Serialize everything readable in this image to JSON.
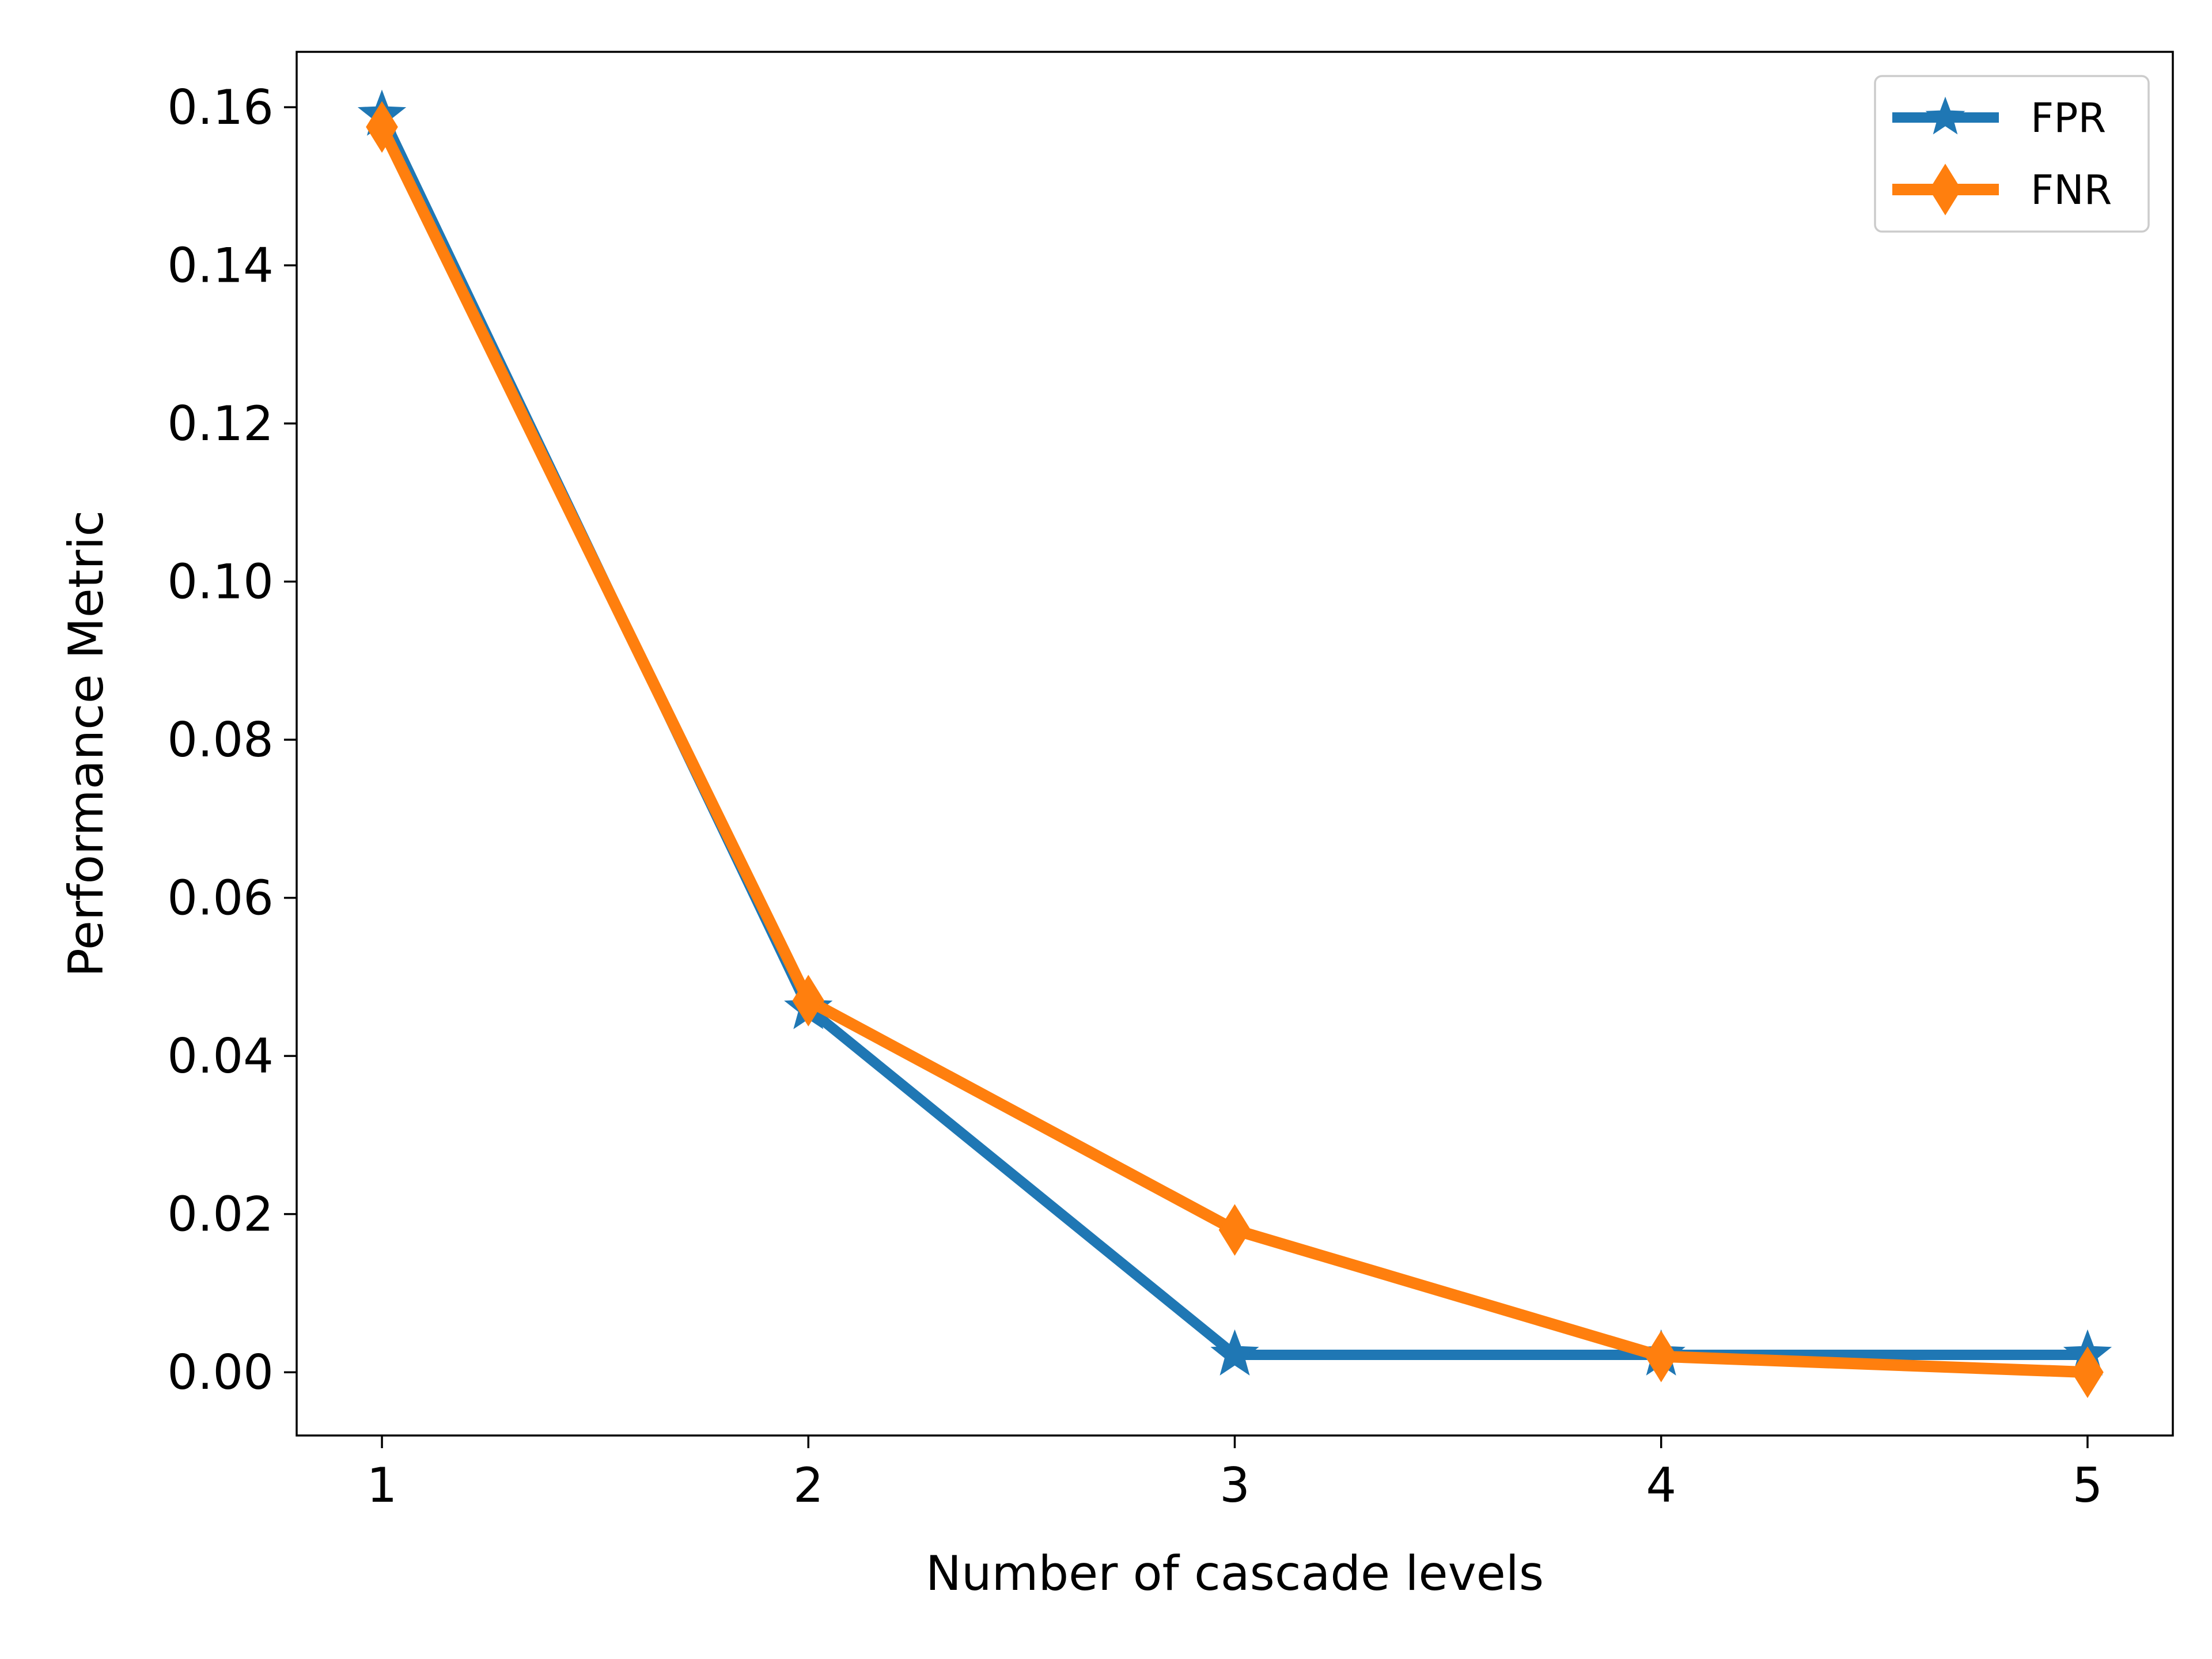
{
  "chart_data": {
    "type": "line",
    "title": "",
    "xlabel": "Number of cascade levels",
    "ylabel": "Performance Metric",
    "x": [
      1,
      2,
      3,
      4,
      5
    ],
    "xticks": [
      "1",
      "2",
      "3",
      "4",
      "5"
    ],
    "yticks": [
      "0.00",
      "0.02",
      "0.04",
      "0.06",
      "0.08",
      "0.10",
      "0.12",
      "0.14",
      "0.16"
    ],
    "xlim": [
      0.8,
      5.2
    ],
    "ylim": [
      -0.008,
      0.167
    ],
    "grid": false,
    "legend_position": "top-right",
    "series": [
      {
        "name": "FPR",
        "values": [
          0.159,
          0.046,
          0.0022,
          0.0022,
          0.0022
        ],
        "color": "#1f77b4",
        "marker": "star"
      },
      {
        "name": "FNR",
        "values": [
          0.1575,
          0.047,
          0.018,
          0.002,
          0.0
        ],
        "color": "#ff7f0e",
        "marker": "diamond"
      }
    ]
  }
}
